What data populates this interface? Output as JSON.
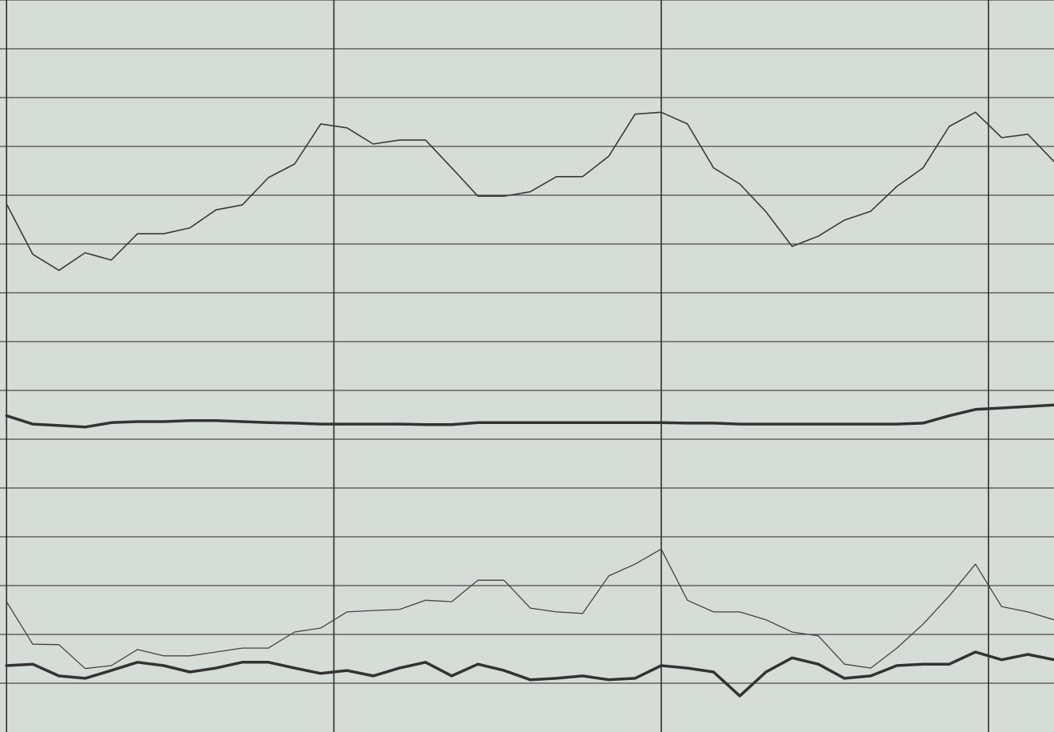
{
  "chart_data": {
    "type": "line",
    "x": [
      0,
      0.08,
      0.16,
      0.24,
      0.32,
      0.4,
      0.48,
      0.56,
      0.64,
      0.72,
      0.8,
      0.88,
      0.96,
      1.04,
      1.12,
      1.2,
      1.28,
      1.36,
      1.44,
      1.52,
      1.6,
      1.68,
      1.76,
      1.84,
      1.92,
      2.0,
      2.08,
      2.16,
      2.24,
      2.32,
      2.4,
      2.48,
      2.56,
      2.64,
      2.72,
      2.8,
      2.88,
      2.96,
      3.04,
      3.12,
      3.2
    ],
    "series": [
      {
        "color": "#3a3a3a",
        "width": 1.6,
        "values": [
          10.82,
          9.79,
          9.46,
          9.82,
          9.67,
          10.21,
          10.21,
          10.33,
          10.7,
          10.8,
          11.36,
          11.64,
          12.46,
          12.38,
          12.05,
          12.13,
          12.13,
          11.56,
          10.98,
          10.98,
          11.07,
          11.38,
          11.38,
          11.8,
          12.66,
          12.7,
          12.46,
          11.56,
          11.23,
          10.66,
          9.95,
          10.16,
          10.49,
          10.67,
          11.18,
          11.56,
          12.41,
          12.7,
          12.18,
          12.25,
          11.69
        ]
      },
      {
        "color": "#333333",
        "width": 3.5,
        "values": [
          6.48,
          6.31,
          6.28,
          6.25,
          6.34,
          6.36,
          6.36,
          6.38,
          6.38,
          6.36,
          6.34,
          6.33,
          6.31,
          6.31,
          6.31,
          6.31,
          6.3,
          6.3,
          6.34,
          6.34,
          6.34,
          6.34,
          6.34,
          6.34,
          6.34,
          6.34,
          6.33,
          6.33,
          6.31,
          6.31,
          6.31,
          6.31,
          6.31,
          6.31,
          6.31,
          6.33,
          6.48,
          6.61,
          6.64,
          6.67,
          6.7
        ]
      },
      {
        "color": "#444444",
        "width": 1.3,
        "values": [
          2.67,
          1.8,
          1.79,
          1.3,
          1.36,
          1.69,
          1.56,
          1.56,
          1.64,
          1.72,
          1.72,
          2.05,
          2.13,
          2.46,
          2.49,
          2.51,
          2.7,
          2.67,
          3.11,
          3.11,
          2.54,
          2.46,
          2.43,
          3.2,
          3.44,
          3.75,
          2.7,
          2.46,
          2.46,
          2.3,
          2.05,
          1.97,
          1.39,
          1.31,
          1.72,
          2.21,
          2.79,
          3.44,
          2.57,
          2.46,
          2.3
        ]
      },
      {
        "color": "#333333",
        "width": 3.5,
        "values": [
          1.36,
          1.39,
          1.15,
          1.1,
          1.26,
          1.43,
          1.36,
          1.23,
          1.31,
          1.43,
          1.43,
          1.31,
          1.2,
          1.26,
          1.15,
          1.31,
          1.43,
          1.15,
          1.39,
          1.26,
          1.07,
          1.1,
          1.15,
          1.07,
          1.1,
          1.36,
          1.31,
          1.23,
          0.74,
          1.23,
          1.52,
          1.39,
          1.1,
          1.15,
          1.36,
          1.39,
          1.39,
          1.64,
          1.48,
          1.59,
          1.48
        ]
      }
    ],
    "xlim": [
      -0.02,
      3.2
    ],
    "xticks": [
      0,
      1,
      2,
      3
    ],
    "ylim": [
      0,
      15
    ],
    "yticks": [
      1,
      2,
      3,
      4,
      5,
      6,
      7,
      8,
      9,
      10,
      11,
      12,
      13,
      14,
      15
    ],
    "grid": true,
    "background": "#d6dcd8"
  }
}
